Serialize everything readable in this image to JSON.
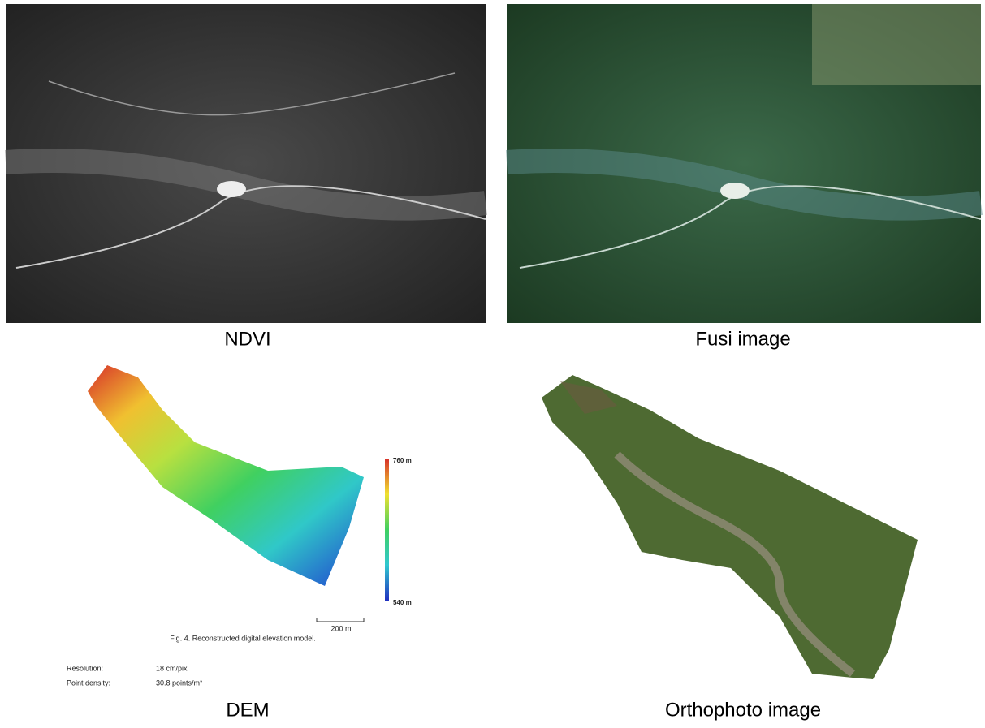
{
  "panels": [
    {
      "caption": "NDVI"
    },
    {
      "caption": "Fusi image"
    },
    {
      "caption": "DEM",
      "colorbar": {
        "top_label": "760 m",
        "bottom_label": "540 m"
      },
      "scale_bar": "200 m",
      "figure_caption": "Fig. 4. Reconstructed digital elevation model.",
      "stats": [
        {
          "label": "Resolution:",
          "value": "18 cm/pix"
        },
        {
          "label": "Point density:",
          "value": "30.8 points/m²"
        }
      ]
    },
    {
      "caption": "Orthophoto image"
    }
  ]
}
